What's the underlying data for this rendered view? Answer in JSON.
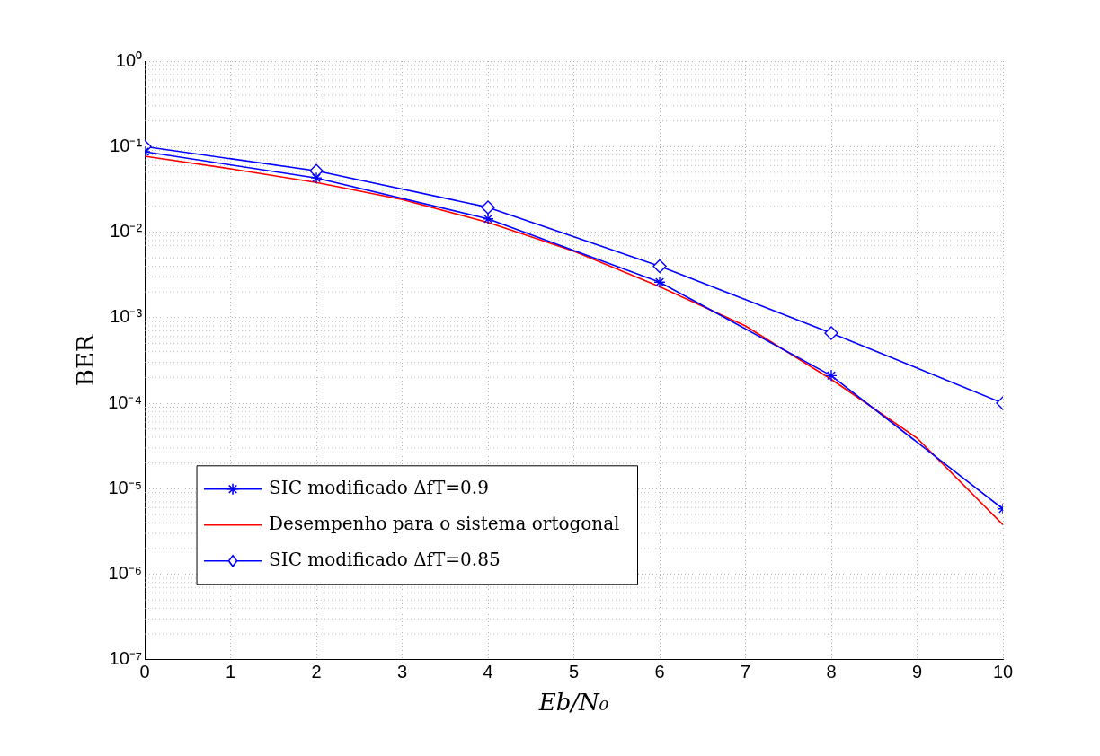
{
  "chart_data": {
    "type": "line",
    "xlabel": "Eb/N₀",
    "ylabel": "BER",
    "log": "y",
    "grid": true,
    "legend": "bottom left",
    "xlim": [
      0,
      10
    ],
    "xticks": [
      0,
      1,
      2,
      3,
      4,
      5,
      6,
      7,
      8,
      9,
      10
    ],
    "ylim": [
      1e-07,
      1
    ],
    "yticks": [
      {
        "value": 1,
        "label": "10⁰"
      },
      {
        "value": 0.1,
        "label": "10⁻¹"
      },
      {
        "value": 0.01,
        "label": "10⁻²"
      },
      {
        "value": 0.001,
        "label": "10⁻³"
      },
      {
        "value": 0.0001,
        "label": "10⁻⁴"
      },
      {
        "value": 1e-05,
        "label": "10⁻⁵"
      },
      {
        "value": 1e-06,
        "label": "10⁻⁶"
      },
      {
        "value": 1e-07,
        "label": "10⁻⁷"
      }
    ],
    "series": [
      {
        "name": "SIC modificado ΔfT=0.9",
        "color": "#0000ff",
        "marker": "cross",
        "x": [
          0,
          2,
          4,
          6,
          8,
          10
        ],
        "values": [
          0.087,
          0.043,
          0.0143,
          0.0026,
          0.00021,
          5.8e-06
        ]
      },
      {
        "name": "Desempenho para o sistema ortogonal",
        "color": "#ff0000",
        "marker": "none",
        "x": [
          0,
          1,
          2,
          3,
          4,
          5,
          6,
          7,
          8,
          9,
          10
        ],
        "values": [
          0.077,
          0.055,
          0.038,
          0.024,
          0.013,
          0.006,
          0.0023,
          0.0008,
          0.00019,
          3.9e-05,
          3.8e-06
        ]
      },
      {
        "name": "SIC modificado ΔfT=0.85",
        "color": "#0000ff",
        "marker": "diamond",
        "x": [
          0,
          2,
          4,
          6,
          8,
          10
        ],
        "values": [
          0.1,
          0.052,
          0.0195,
          0.004,
          0.00066,
          0.0001
        ]
      }
    ]
  }
}
